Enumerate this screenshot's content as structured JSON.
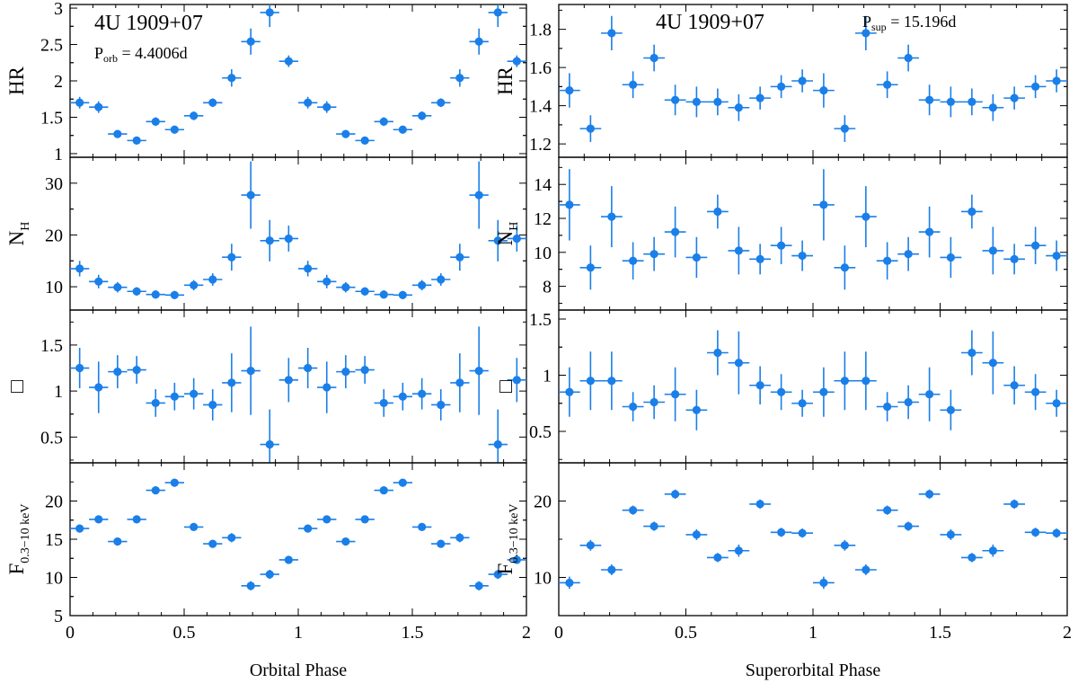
{
  "colors": {
    "marker": "#1a7fe8",
    "axis": "#000000"
  },
  "chart_data": [
    {
      "type": "scatter",
      "name": "orbital",
      "xlabel": "Orbital Phase",
      "xlim": [
        0,
        2
      ],
      "xticks": [
        "0",
        "0.5",
        "1",
        "1.5",
        "2"
      ],
      "annotations": {
        "source": "4U 1909+07",
        "period_label": "P",
        "period_sub": "orb",
        "period_value": " = 4.4006d"
      },
      "x": [
        0.042,
        0.125,
        0.208,
        0.292,
        0.375,
        0.458,
        0.542,
        0.625,
        0.708,
        0.792,
        0.875,
        0.958,
        1.042,
        1.125,
        1.208,
        1.292,
        1.375,
        1.458,
        1.542,
        1.625,
        1.708,
        1.792,
        1.875,
        1.958
      ],
      "x_halfwidth": 0.042,
      "panels": [
        {
          "key": "hr",
          "ylabel_main": "HR",
          "ylabel_sub": "",
          "ylim": [
            0.95,
            3.05
          ],
          "yticks": [
            {
              "v": 1,
              "label": "1"
            },
            {
              "v": 1.5,
              "label": "1.5"
            },
            {
              "v": 2,
              "label": "2"
            },
            {
              "v": 2.5,
              "label": "2.5"
            },
            {
              "v": 3,
              "label": "3"
            }
          ],
          "y": [
            1.7,
            1.64,
            1.27,
            1.18,
            1.44,
            1.33,
            1.52,
            1.7,
            2.04,
            2.54,
            2.94,
            2.27,
            1.7,
            1.64,
            1.27,
            1.18,
            1.44,
            1.33,
            1.52,
            1.7,
            2.04,
            2.54,
            2.94,
            2.27
          ],
          "yerr": [
            0.08,
            0.08,
            0.05,
            0.05,
            0.06,
            0.05,
            0.06,
            0.06,
            0.12,
            0.18,
            0.2,
            0.08,
            0.08,
            0.08,
            0.05,
            0.05,
            0.06,
            0.05,
            0.06,
            0.06,
            0.12,
            0.18,
            0.2,
            0.08
          ]
        },
        {
          "key": "nh",
          "ylabel_main": "N",
          "ylabel_sub": "H",
          "ylim": [
            5.5,
            35
          ],
          "yticks": [
            {
              "v": 10,
              "label": "10"
            },
            {
              "v": 20,
              "label": "20"
            },
            {
              "v": 30,
              "label": "30"
            }
          ],
          "y": [
            13.5,
            11.0,
            9.9,
            9.1,
            8.5,
            8.4,
            10.3,
            11.4,
            15.7,
            27.7,
            18.9,
            19.3,
            13.5,
            11.0,
            9.9,
            9.1,
            8.5,
            8.4,
            10.3,
            11.4,
            15.7,
            27.7,
            18.9,
            19.3
          ],
          "yerr": [
            1.5,
            1.3,
            1.0,
            0.8,
            0.8,
            0.8,
            1.0,
            1.2,
            2.6,
            6.5,
            4.0,
            2.5,
            1.5,
            1.3,
            1.0,
            0.8,
            0.8,
            0.8,
            1.0,
            1.2,
            2.6,
            6.5,
            4.0,
            2.5
          ]
        },
        {
          "key": "gamma",
          "ylabel_main": "□",
          "ylabel_sub": "",
          "ylim": [
            0.22,
            1.88
          ],
          "yticks": [
            {
              "v": 0.5,
              "label": "0.5"
            },
            {
              "v": 1,
              "label": "1"
            },
            {
              "v": 1.5,
              "label": "1.5"
            }
          ],
          "y": [
            1.25,
            1.04,
            1.21,
            1.23,
            0.87,
            0.94,
            0.97,
            0.85,
            1.09,
            1.22,
            0.42,
            1.12,
            1.25,
            1.04,
            1.21,
            1.23,
            0.87,
            0.94,
            0.97,
            0.85,
            1.09,
            1.22,
            0.42,
            1.12
          ],
          "yerr": [
            0.22,
            0.28,
            0.18,
            0.15,
            0.15,
            0.15,
            0.17,
            0.17,
            0.32,
            0.48,
            0.38,
            0.24,
            0.22,
            0.28,
            0.18,
            0.15,
            0.15,
            0.15,
            0.17,
            0.17,
            0.32,
            0.48,
            0.38,
            0.24
          ]
        },
        {
          "key": "flux",
          "ylabel_main": "F",
          "ylabel_sub": "0.3−10 keV",
          "ylim": [
            5,
            25
          ],
          "yticks": [
            {
              "v": 5,
              "label": "5"
            },
            {
              "v": 10,
              "label": "10"
            },
            {
              "v": 15,
              "label": "15"
            },
            {
              "v": 20,
              "label": "20"
            }
          ],
          "y": [
            16.4,
            17.6,
            14.7,
            17.6,
            21.4,
            22.4,
            16.6,
            14.4,
            15.2,
            8.9,
            10.4,
            12.3,
            16.4,
            17.6,
            14.7,
            17.6,
            21.4,
            22.4,
            16.6,
            14.4,
            15.2,
            8.9,
            10.4,
            12.3
          ],
          "yerr": [
            0.5,
            0.5,
            0.5,
            0.5,
            0.4,
            0.4,
            0.4,
            0.5,
            0.6,
            0.6,
            0.6,
            0.5,
            0.5,
            0.5,
            0.5,
            0.5,
            0.4,
            0.4,
            0.4,
            0.5,
            0.6,
            0.6,
            0.6,
            0.5
          ]
        }
      ]
    },
    {
      "type": "scatter",
      "name": "superorbital",
      "xlabel": "Superorbital Phase",
      "xlim": [
        0,
        2
      ],
      "xticks": [
        "0",
        "0.5",
        "1",
        "1.5",
        "2"
      ],
      "annotations": {
        "source": "4U 1909+07",
        "period_label": "P",
        "period_sub": "sup",
        "period_value": " = 15.196d"
      },
      "x": [
        0.042,
        0.125,
        0.208,
        0.292,
        0.375,
        0.458,
        0.542,
        0.625,
        0.708,
        0.792,
        0.875,
        0.958,
        1.042,
        1.125,
        1.208,
        1.292,
        1.375,
        1.458,
        1.542,
        1.625,
        1.708,
        1.792,
        1.875,
        1.958
      ],
      "x_halfwidth": 0.042,
      "panels": [
        {
          "key": "hr",
          "ylabel_main": "HR",
          "ylabel_sub": "",
          "ylim": [
            1.13,
            1.93
          ],
          "yticks": [
            {
              "v": 1.2,
              "label": "1.2"
            },
            {
              "v": 1.4,
              "label": "1.4"
            },
            {
              "v": 1.6,
              "label": "1.6"
            },
            {
              "v": 1.8,
              "label": "1.8"
            }
          ],
          "y": [
            1.48,
            1.28,
            1.78,
            1.51,
            1.65,
            1.43,
            1.42,
            1.42,
            1.39,
            1.44,
            1.5,
            1.53,
            1.48,
            1.28,
            1.78,
            1.51,
            1.65,
            1.43,
            1.42,
            1.42,
            1.39,
            1.44,
            1.5,
            1.53
          ],
          "yerr": [
            0.09,
            0.07,
            0.09,
            0.07,
            0.07,
            0.08,
            0.08,
            0.07,
            0.07,
            0.06,
            0.06,
            0.06,
            0.09,
            0.07,
            0.09,
            0.07,
            0.07,
            0.08,
            0.08,
            0.07,
            0.07,
            0.06,
            0.06,
            0.06
          ]
        },
        {
          "key": "nh",
          "ylabel_main": "N",
          "ylabel_sub": "H",
          "ylim": [
            6.6,
            15.6
          ],
          "yticks": [
            {
              "v": 8,
              "label": "8"
            },
            {
              "v": 10,
              "label": "10"
            },
            {
              "v": 12,
              "label": "12"
            },
            {
              "v": 14,
              "label": "14"
            }
          ],
          "y": [
            12.8,
            9.1,
            12.1,
            9.5,
            9.9,
            11.2,
            9.7,
            12.4,
            10.1,
            9.6,
            10.4,
            9.8,
            12.8,
            9.1,
            12.1,
            9.5,
            9.9,
            11.2,
            9.7,
            12.4,
            10.1,
            9.6,
            10.4,
            9.8
          ],
          "yerr": [
            2.1,
            1.3,
            1.8,
            1.1,
            1.0,
            1.5,
            1.2,
            1.0,
            1.4,
            0.9,
            1.1,
            0.9,
            2.1,
            1.3,
            1.8,
            1.1,
            1.0,
            1.5,
            1.2,
            1.0,
            1.4,
            0.9,
            1.1,
            0.9
          ]
        },
        {
          "key": "gamma",
          "ylabel_main": "□",
          "ylabel_sub": "",
          "ylim": [
            0.22,
            1.58
          ],
          "yticks": [
            {
              "v": 0.5,
              "label": "0.5"
            },
            {
              "v": 1,
              "label": "1"
            },
            {
              "v": 1.5,
              "label": "1.5"
            }
          ],
          "y": [
            0.85,
            0.95,
            0.95,
            0.72,
            0.76,
            0.83,
            0.69,
            1.2,
            1.11,
            0.91,
            0.85,
            0.75,
            0.85,
            0.95,
            0.95,
            0.72,
            0.76,
            0.83,
            0.69,
            1.2,
            1.11,
            0.91,
            0.85,
            0.75
          ],
          "yerr": [
            0.22,
            0.26,
            0.26,
            0.13,
            0.15,
            0.24,
            0.18,
            0.2,
            0.28,
            0.17,
            0.16,
            0.12,
            0.22,
            0.26,
            0.26,
            0.13,
            0.15,
            0.24,
            0.18,
            0.2,
            0.28,
            0.17,
            0.16,
            0.12
          ]
        },
        {
          "key": "flux",
          "ylabel_main": "F",
          "ylabel_sub": "0.3−10 keV",
          "ylim": [
            5,
            25
          ],
          "yticks": [
            {
              "v": 10,
              "label": "10"
            },
            {
              "v": 20,
              "label": "20"
            }
          ],
          "y": [
            9.3,
            14.2,
            11.0,
            18.8,
            16.7,
            20.9,
            15.6,
            12.6,
            13.5,
            19.6,
            15.9,
            15.8,
            9.3,
            14.2,
            11.0,
            18.8,
            16.7,
            20.9,
            15.6,
            12.6,
            13.5,
            19.6,
            15.9,
            15.8
          ],
          "yerr": [
            0.8,
            0.7,
            0.7,
            0.6,
            0.6,
            0.6,
            0.7,
            0.6,
            0.8,
            0.6,
            0.6,
            0.6,
            0.8,
            0.7,
            0.7,
            0.6,
            0.6,
            0.6,
            0.7,
            0.6,
            0.8,
            0.6,
            0.6,
            0.6
          ]
        }
      ]
    }
  ]
}
